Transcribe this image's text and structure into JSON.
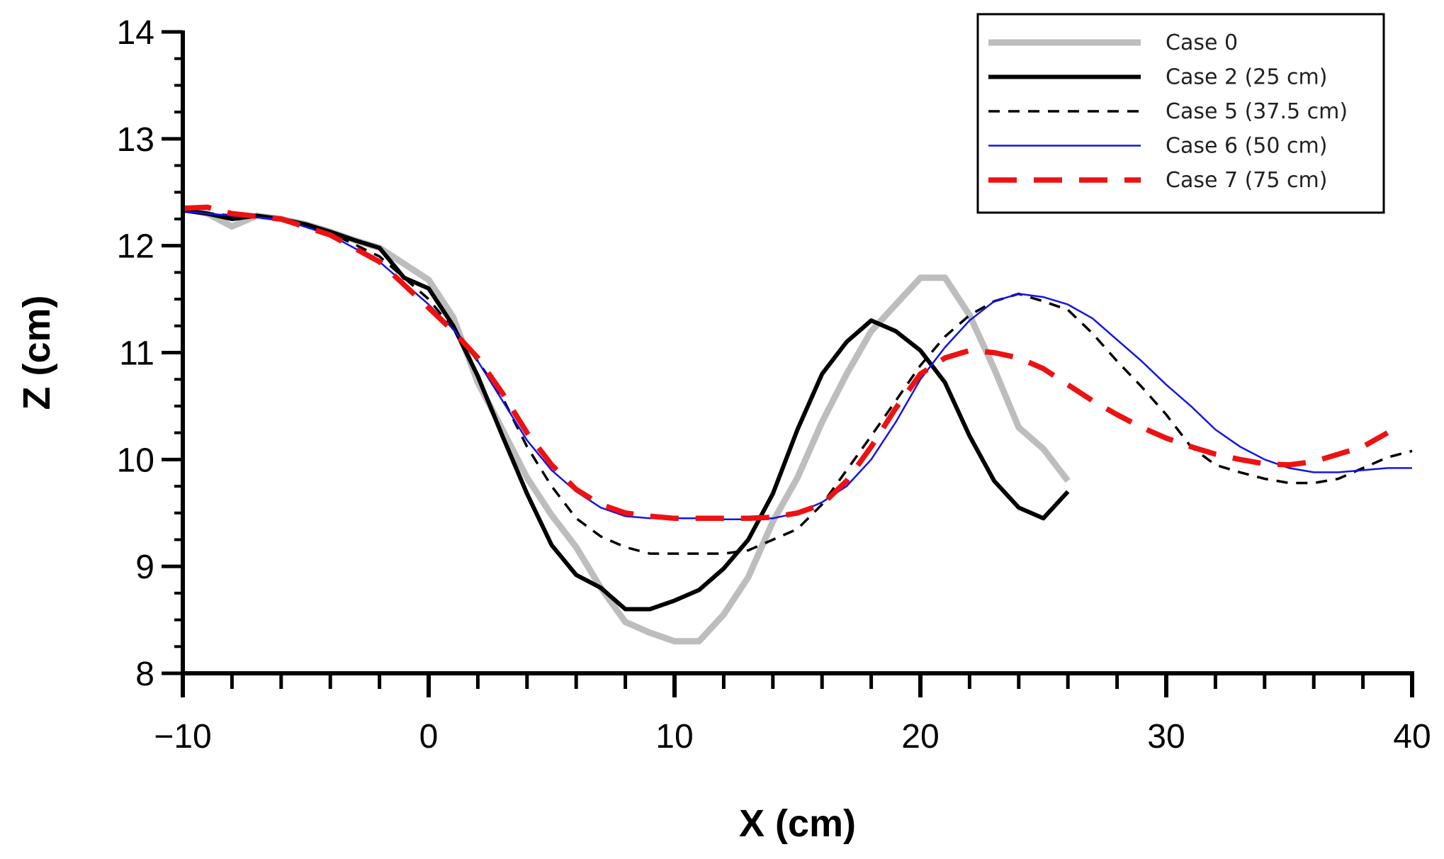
{
  "chart_data": {
    "type": "line",
    "title": "",
    "xlabel": "X (cm)",
    "ylabel": "Z (cm)",
    "xlim": [
      -10,
      40
    ],
    "ylim": [
      8,
      14
    ],
    "xticks": [
      -10,
      0,
      10,
      20,
      30,
      40
    ],
    "xtick_labels": [
      "−10",
      "0",
      "10",
      "20",
      "30",
      "40"
    ],
    "yticks": [
      8,
      9,
      10,
      11,
      12,
      13,
      14
    ],
    "ytick_labels": [
      "8",
      "9",
      "10",
      "11",
      "12",
      "13",
      "14"
    ],
    "grid": false,
    "legend_position": "top-right",
    "series": [
      {
        "name": "Case 0",
        "color": "#bdbdbd",
        "style": "solid-thick",
        "x": [
          -10,
          -9,
          -8,
          -7,
          -6,
          -5,
          -4,
          -3,
          -2,
          -1,
          0,
          1,
          2,
          3,
          4,
          5,
          6,
          7,
          8,
          9,
          10,
          11,
          12,
          13,
          14,
          15,
          16,
          17,
          18,
          19,
          20,
          21,
          22,
          23,
          24,
          25,
          26
        ],
        "y": [
          12.35,
          12.3,
          12.18,
          12.28,
          12.25,
          12.2,
          12.13,
          12.05,
          11.98,
          11.83,
          11.68,
          11.33,
          10.72,
          10.28,
          9.83,
          9.48,
          9.18,
          8.8,
          8.48,
          8.38,
          8.3,
          8.3,
          8.55,
          8.9,
          9.42,
          9.83,
          10.35,
          10.8,
          11.2,
          11.45,
          11.7,
          11.7,
          11.35,
          10.85,
          10.3,
          10.1,
          9.8
        ]
      },
      {
        "name": "Case 2 (25 cm)",
        "color": "#000000",
        "style": "solid",
        "x": [
          -10,
          -9,
          -8,
          -7,
          -6,
          -5,
          -4,
          -3,
          -2,
          -1,
          0,
          1,
          2,
          3,
          4,
          5,
          6,
          7,
          8,
          9,
          10,
          11,
          12,
          13,
          14,
          15,
          16,
          17,
          18,
          19,
          20,
          21,
          22,
          23,
          24,
          25,
          26
        ],
        "y": [
          12.33,
          12.3,
          12.25,
          12.28,
          12.25,
          12.2,
          12.13,
          12.05,
          11.98,
          11.7,
          11.6,
          11.25,
          10.78,
          10.22,
          9.68,
          9.2,
          8.92,
          8.8,
          8.6,
          8.6,
          8.68,
          8.78,
          8.98,
          9.25,
          9.68,
          10.28,
          10.8,
          11.1,
          11.3,
          11.2,
          11.02,
          10.72,
          10.22,
          9.8,
          9.55,
          9.45,
          9.7
        ]
      },
      {
        "name": "Case 5 (37.5 cm)",
        "color": "#000000",
        "style": "dashed",
        "x": [
          -10,
          -8,
          -6,
          -4,
          -2,
          0,
          1,
          2,
          3,
          4,
          5,
          6,
          7,
          8,
          9,
          10,
          11,
          12,
          13,
          14,
          15,
          16,
          17,
          18,
          19,
          20,
          21,
          22,
          23,
          24,
          25,
          26,
          27,
          28,
          29,
          30,
          31,
          32,
          33,
          34,
          35,
          36,
          37,
          38,
          39,
          40
        ],
        "y": [
          12.33,
          12.28,
          12.25,
          12.12,
          11.9,
          11.5,
          11.22,
          10.92,
          10.58,
          10.12,
          9.75,
          9.45,
          9.28,
          9.18,
          9.12,
          9.12,
          9.12,
          9.12,
          9.15,
          9.25,
          9.35,
          9.58,
          9.9,
          10.22,
          10.55,
          10.88,
          11.15,
          11.35,
          11.48,
          11.55,
          11.48,
          11.4,
          11.18,
          10.92,
          10.68,
          10.42,
          10.12,
          9.95,
          9.88,
          9.82,
          9.78,
          9.78,
          9.82,
          9.92,
          10.02,
          10.08
        ]
      },
      {
        "name": "Case 6 (50 cm)",
        "color": "#1414e6",
        "style": "solid-thin",
        "x": [
          -10,
          -8,
          -6,
          -4,
          -2,
          0,
          1,
          2,
          3,
          4,
          5,
          6,
          7,
          8,
          9,
          10,
          11,
          12,
          13,
          14,
          15,
          16,
          17,
          18,
          19,
          20,
          21,
          22,
          23,
          24,
          25,
          26,
          27,
          28,
          29,
          30,
          31,
          32,
          33,
          34,
          35,
          36,
          37,
          38,
          39,
          40
        ],
        "y": [
          12.32,
          12.28,
          12.25,
          12.1,
          11.85,
          11.45,
          11.22,
          10.92,
          10.55,
          10.18,
          9.9,
          9.7,
          9.55,
          9.47,
          9.45,
          9.45,
          9.45,
          9.44,
          9.44,
          9.45,
          9.5,
          9.6,
          9.75,
          10.0,
          10.35,
          10.75,
          11.05,
          11.3,
          11.48,
          11.55,
          11.52,
          11.45,
          11.32,
          11.12,
          10.92,
          10.7,
          10.5,
          10.28,
          10.12,
          10.0,
          9.92,
          9.88,
          9.88,
          9.9,
          9.92,
          9.92
        ]
      },
      {
        "name": "Case 7 (75 cm)",
        "color": "#ee1111",
        "style": "long-dashed",
        "x": [
          -10,
          -9,
          -8,
          -6,
          -4,
          -2,
          0,
          1,
          2,
          3,
          4,
          5,
          6,
          7,
          8,
          9,
          10,
          11,
          12,
          13,
          14,
          15,
          16,
          17,
          18,
          19,
          20,
          21,
          22,
          23,
          24,
          25,
          26,
          27,
          28,
          29,
          30,
          31,
          32,
          33,
          34,
          35,
          36,
          37,
          38,
          39
        ],
        "y": [
          12.35,
          12.36,
          12.3,
          12.25,
          12.1,
          11.85,
          11.42,
          11.2,
          10.95,
          10.62,
          10.25,
          9.95,
          9.72,
          9.58,
          9.5,
          9.47,
          9.45,
          9.45,
          9.45,
          9.45,
          9.46,
          9.5,
          9.58,
          9.8,
          10.12,
          10.48,
          10.8,
          10.95,
          11.02,
          11.0,
          10.95,
          10.85,
          10.7,
          10.55,
          10.42,
          10.3,
          10.2,
          10.12,
          10.05,
          10.0,
          9.96,
          9.95,
          9.98,
          10.05,
          10.12,
          10.25
        ]
      }
    ]
  }
}
